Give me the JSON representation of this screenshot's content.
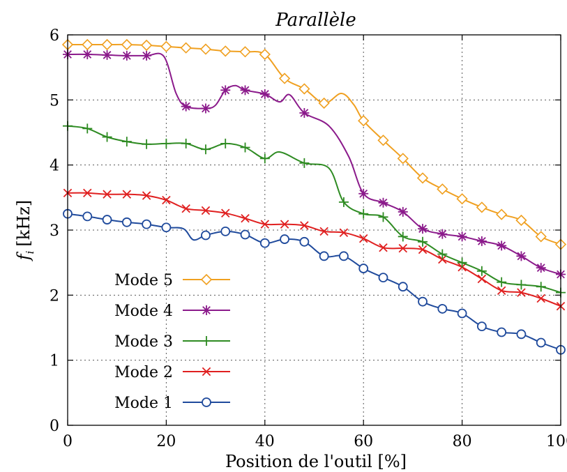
{
  "chart_data": {
    "type": "line",
    "title": "Parallèle",
    "xlabel": "Position de l'outil [%]",
    "ylabel_main": "f",
    "ylabel_sub": "i",
    "ylabel_unit": "[kHz]",
    "xlim": [
      0,
      100
    ],
    "ylim": [
      0,
      6
    ],
    "xticks": [
      0,
      20,
      40,
      60,
      80,
      100
    ],
    "yticks": [
      0,
      1,
      2,
      3,
      4,
      5,
      6
    ],
    "grid": true,
    "legend_position": "bottom-left",
    "series": [
      {
        "name": "Mode 5",
        "color": "#f0a020",
        "marker": "diamond",
        "points": [
          [
            0,
            5.85
          ],
          [
            4,
            5.85
          ],
          [
            8,
            5.85
          ],
          [
            12,
            5.85
          ],
          [
            16,
            5.84
          ],
          [
            20,
            5.82
          ],
          [
            24,
            5.8
          ],
          [
            28,
            5.78
          ],
          [
            32,
            5.75
          ],
          [
            36,
            5.74
          ],
          [
            40,
            5.7
          ],
          [
            44,
            5.33
          ],
          [
            48,
            5.17
          ],
          [
            52,
            4.95
          ],
          [
            55.5,
            5.1
          ],
          [
            58,
            4.93
          ],
          [
            60,
            4.68
          ],
          [
            64,
            4.38
          ],
          [
            68,
            4.1
          ],
          [
            72,
            3.8
          ],
          [
            76,
            3.63
          ],
          [
            80,
            3.48
          ],
          [
            84,
            3.35
          ],
          [
            88,
            3.24
          ],
          [
            92,
            3.15
          ],
          [
            96,
            2.9
          ],
          [
            100,
            2.78
          ]
        ]
      },
      {
        "name": "Mode 4",
        "color": "#8b1a8b",
        "marker": "star",
        "points": [
          [
            0,
            5.7
          ],
          [
            4,
            5.7
          ],
          [
            8,
            5.69
          ],
          [
            12,
            5.68
          ],
          [
            16,
            5.68
          ],
          [
            19.5,
            5.67
          ],
          [
            22,
            5.1
          ],
          [
            24,
            4.9
          ],
          [
            28,
            4.87
          ],
          [
            30,
            4.92
          ],
          [
            32,
            5.15
          ],
          [
            34,
            5.22
          ],
          [
            36,
            5.15
          ],
          [
            40,
            5.09
          ],
          [
            43,
            4.97
          ],
          [
            45,
            5.08
          ],
          [
            48,
            4.8
          ],
          [
            53,
            4.6
          ],
          [
            57,
            4.13
          ],
          [
            60,
            3.56
          ],
          [
            64,
            3.42
          ],
          [
            68,
            3.28
          ],
          [
            72,
            3.02
          ],
          [
            76,
            2.94
          ],
          [
            80,
            2.9
          ],
          [
            84,
            2.83
          ],
          [
            88,
            2.76
          ],
          [
            92,
            2.6
          ],
          [
            96,
            2.42
          ],
          [
            100,
            2.32
          ]
        ]
      },
      {
        "name": "Mode 3",
        "color": "#2e8b22",
        "marker": "plus",
        "points": [
          [
            0,
            4.6
          ],
          [
            4,
            4.56
          ],
          [
            8,
            4.43
          ],
          [
            12,
            4.36
          ],
          [
            16,
            4.32
          ],
          [
            20,
            4.33
          ],
          [
            24,
            4.33
          ],
          [
            28,
            4.24
          ],
          [
            32,
            4.33
          ],
          [
            36,
            4.27
          ],
          [
            40,
            4.1
          ],
          [
            43,
            4.2
          ],
          [
            48,
            4.03
          ],
          [
            53,
            3.95
          ],
          [
            56,
            3.43
          ],
          [
            60,
            3.25
          ],
          [
            64,
            3.2
          ],
          [
            68,
            2.9
          ],
          [
            72,
            2.82
          ],
          [
            76,
            2.63
          ],
          [
            80,
            2.5
          ],
          [
            84,
            2.37
          ],
          [
            88,
            2.2
          ],
          [
            92,
            2.16
          ],
          [
            96,
            2.13
          ],
          [
            100,
            2.04
          ]
        ]
      },
      {
        "name": "Mode 2",
        "color": "#e02020",
        "marker": "cross",
        "points": [
          [
            0,
            3.57
          ],
          [
            4,
            3.57
          ],
          [
            8,
            3.55
          ],
          [
            12,
            3.55
          ],
          [
            16,
            3.53
          ],
          [
            20,
            3.46
          ],
          [
            24,
            3.33
          ],
          [
            28,
            3.3
          ],
          [
            32,
            3.26
          ],
          [
            36,
            3.18
          ],
          [
            40,
            3.09
          ],
          [
            44,
            3.09
          ],
          [
            48,
            3.07
          ],
          [
            52,
            2.98
          ],
          [
            56,
            2.96
          ],
          [
            60,
            2.87
          ],
          [
            64,
            2.73
          ],
          [
            68,
            2.72
          ],
          [
            72,
            2.7
          ],
          [
            76,
            2.55
          ],
          [
            80,
            2.43
          ],
          [
            84,
            2.25
          ],
          [
            88,
            2.07
          ],
          [
            92,
            2.04
          ],
          [
            96,
            1.95
          ],
          [
            100,
            1.83
          ]
        ]
      },
      {
        "name": "Mode 1",
        "color": "#1f4a9c",
        "marker": "circle",
        "points": [
          [
            0,
            3.25
          ],
          [
            4,
            3.21
          ],
          [
            8,
            3.16
          ],
          [
            12,
            3.12
          ],
          [
            16,
            3.09
          ],
          [
            20,
            3.04
          ],
          [
            23.5,
            3.02
          ],
          [
            25.5,
            2.85
          ],
          [
            28,
            2.92
          ],
          [
            32,
            2.98
          ],
          [
            36,
            2.93
          ],
          [
            40,
            2.8
          ],
          [
            44,
            2.86
          ],
          [
            48,
            2.82
          ],
          [
            52,
            2.6
          ],
          [
            56,
            2.6
          ],
          [
            60,
            2.41
          ],
          [
            64,
            2.27
          ],
          [
            68,
            2.13
          ],
          [
            72,
            1.9
          ],
          [
            76,
            1.79
          ],
          [
            80,
            1.72
          ],
          [
            84,
            1.52
          ],
          [
            88,
            1.43
          ],
          [
            92,
            1.4
          ],
          [
            96,
            1.27
          ],
          [
            100,
            1.16
          ]
        ]
      }
    ]
  }
}
